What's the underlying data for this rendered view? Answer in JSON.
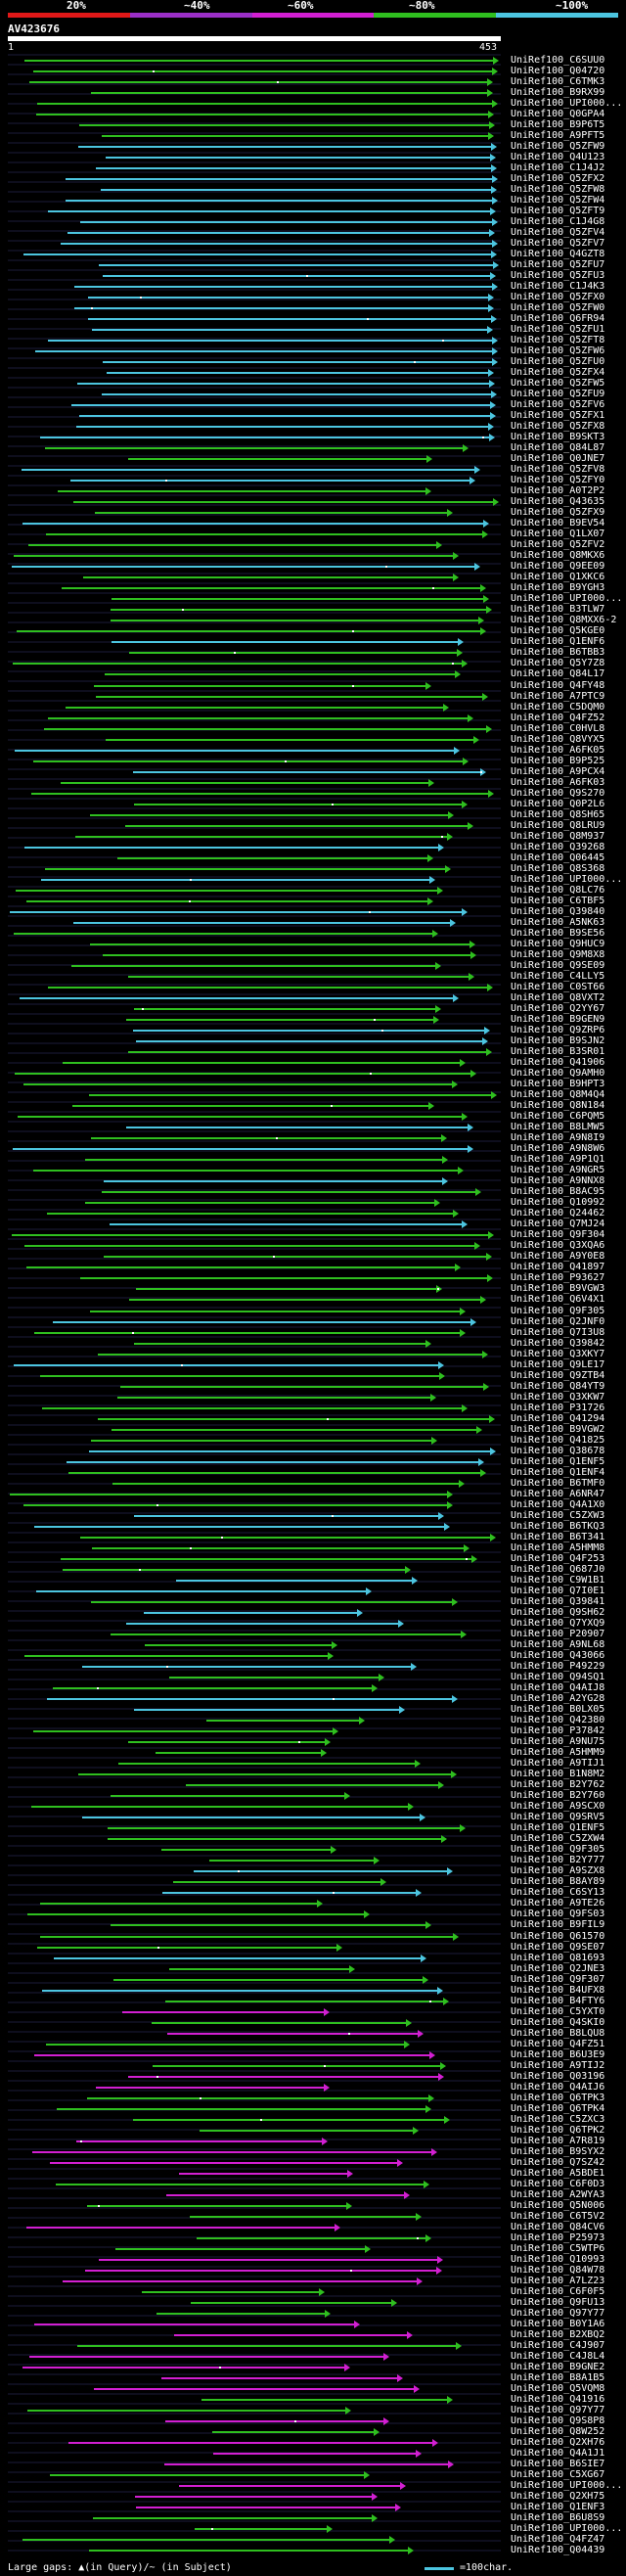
{
  "legend": {
    "labels": [
      "20%",
      "~40%",
      "~60%",
      "~80%",
      "~100%"
    ],
    "colors": [
      "#e01818",
      "#9b2fc7",
      "#d21fd2",
      "#2fbf1f",
      "#4cc5e0"
    ]
  },
  "query": {
    "id": "AV423676",
    "start": "1",
    "end": "453"
  },
  "hits": [
    "UniRef100_C6SUU0",
    "UniRef100_Q04720",
    "UniRef100_C6TMK3",
    "UniRef100_B9RX99",
    "UniRef100_UPI000...",
    "UniRef100_Q0GPA4",
    "UniRef100_B9P6T5",
    "UniRef100_A9PFT5",
    "UniRef100_Q5ZFW9",
    "UniRef100_Q4U123",
    "UniRef100_C1J4J2",
    "UniRef100_Q5ZFX2",
    "UniRef100_Q5ZFW8",
    "UniRef100_Q5ZFW4",
    "UniRef100_Q5ZFT9",
    "UniRef100_C1J4G8",
    "UniRef100_Q5ZFV4",
    "UniRef100_Q5ZFV7",
    "UniRef100_Q4GZT8",
    "UniRef100_Q5ZFU7",
    "UniRef100_Q5ZFU3",
    "UniRef100_C1J4K3",
    "UniRef100_Q5ZFX0",
    "UniRef100_Q5ZFW0",
    "UniRef100_Q6FR94",
    "UniRef100_Q5ZFU1",
    "UniRef100_Q5ZFT8",
    "UniRef100_Q5ZFW6",
    "UniRef100_Q5ZFU0",
    "UniRef100_Q5ZFX4",
    "UniRef100_Q5ZFW5",
    "UniRef100_Q5ZFU9",
    "UniRef100_Q5ZFV6",
    "UniRef100_Q5ZFX1",
    "UniRef100_Q5ZFX8",
    "UniRef100_B9SKT3",
    "UniRef100_Q84L87",
    "UniRef100_Q0JNE7",
    "UniRef100_Q5ZFV8",
    "UniRef100_Q5ZFY0",
    "UniRef100_A0T2P2",
    "UniRef100_Q43635",
    "UniRef100_Q5ZFX9",
    "UniRef100_B9EV54",
    "UniRef100_Q1LX07",
    "UniRef100_Q5ZFV2",
    "UniRef100_Q8MKX6",
    "UniRef100_Q9EE09",
    "UniRef100_Q1XKC6",
    "UniRef100_B9YGH3",
    "UniRef100_UPI000...",
    "UniRef100_B3TLW7",
    "UniRef100_Q8MXX6-2",
    "UniRef100_Q5KGE0",
    "UniRef100_Q1ENF6",
    "UniRef100_B6TBB3",
    "UniRef100_Q5Y7Z8",
    "UniRef100_Q84L17",
    "UniRef100_Q4FY48",
    "UniRef100_A7PTC9",
    "UniRef100_C5DQM0",
    "UniRef100_Q4FZ52",
    "UniRef100_C0HVL8",
    "UniRef100_Q8VYX5",
    "UniRef100_A6FK05",
    "UniRef100_B9P525",
    "UniRef100_A9PCX4",
    "UniRef100_A6FK03",
    "UniRef100_Q9S270",
    "UniRef100_Q0P2L6",
    "UniRef100_Q8SH65",
    "UniRef100_Q8LRU9",
    "UniRef100_Q8M937",
    "UniRef100_Q39268",
    "UniRef100_Q06445",
    "UniRef100_Q8S368",
    "UniRef100_UPI000...",
    "UniRef100_Q8LC76",
    "UniRef100_C6TBF5",
    "UniRef100_Q39840",
    "UniRef100_A5NK63",
    "UniRef100_B9SE56",
    "UniRef100_Q9HUC9",
    "UniRef100_Q9M8X8",
    "UniRef100_Q9SE09",
    "UniRef100_C4LLY5",
    "UniRef100_C0ST66",
    "UniRef100_Q8VXT2",
    "UniRef100_Q2YY67",
    "UniRef100_B9GEN9",
    "UniRef100_Q9ZRP6",
    "UniRef100_B9SJN2",
    "UniRef100_B3SR01",
    "UniRef100_Q41906",
    "UniRef100_Q9AMH0",
    "UniRef100_B9HPT3",
    "UniRef100_Q8M4Q4",
    "UniRef100_Q8N184",
    "UniRef100_C6PQM5",
    "UniRef100_B8LMW5",
    "UniRef100_A9N8I9",
    "UniRef100_A9N8W6",
    "UniRef100_A9P1Q1",
    "UniRef100_A9NGR5",
    "UniRef100_A9NNX8",
    "UniRef100_B8AC95",
    "UniRef100_Q10992",
    "UniRef100_Q24462",
    "UniRef100_Q7MJ24",
    "UniRef100_Q9F304",
    "UniRef100_Q3XQA6",
    "UniRef100_A9Y0E8",
    "UniRef100_Q41897",
    "UniRef100_P93627",
    "UniRef100_B9VGW3",
    "UniRef100_Q6V4X1",
    "UniRef100_Q9F305",
    "UniRef100_Q2JNF0",
    "UniRef100_Q7I3U8",
    "UniRef100_Q39842",
    "UniRef100_Q3XKY7",
    "UniRef100_Q9LE17",
    "UniRef100_Q9ZTB4",
    "UniRef100_Q84YT9",
    "UniRef100_Q3XKW7",
    "UniRef100_P31726",
    "UniRef100_Q41294",
    "UniRef100_B9VGW2",
    "UniRef100_Q41825",
    "UniRef100_Q38678",
    "UniRef100_Q1ENF5",
    "UniRef100_Q1ENF4",
    "UniRef100_B6TMF0",
    "UniRef100_A6NR47",
    "UniRef100_Q4A1X0",
    "UniRef100_C5ZXW3",
    "UniRef100_B6TKQ3",
    "UniRef100_B6T341",
    "UniRef100_A5HMM8",
    "UniRef100_Q4F253",
    "UniRef100_Q687J0",
    "UniRef100_C9W1B1",
    "UniRef100_Q7I0E1",
    "UniRef100_Q39841",
    "UniRef100_Q9SH62",
    "UniRef100_Q7YXQ9",
    "UniRef100_P20907",
    "UniRef100_A9NL68",
    "UniRef100_Q43066",
    "UniRef100_P49229",
    "UniRef100_Q94SQ1",
    "UniRef100_Q4AIJ8",
    "UniRef100_A2YG28",
    "UniRef100_B0LX05",
    "UniRef100_Q42380",
    "UniRef100_P37842",
    "UniRef100_A9NU75",
    "UniRef100_A5HMM9",
    "UniRef100_A9TIJ1",
    "UniRef100_B1N8M2",
    "UniRef100_B2Y762",
    "UniRef100_B2Y760",
    "UniRef100_A9SCX0",
    "UniRef100_Q9SRV5",
    "UniRef100_Q1ENF5",
    "UniRef100_C5ZXW4",
    "UniRef100_Q9F305",
    "UniRef100_B2Y777",
    "UniRef100_A9SZX8",
    "UniRef100_B8AY89",
    "UniRef100_C6SY13",
    "UniRef100_A9TE26",
    "UniRef100_Q9FS03",
    "UniRef100_B9FIL9",
    "UniRef100_Q61570",
    "UniRef100_Q9SE07",
    "UniRef100_Q81693",
    "UniRef100_Q2JNE3",
    "UniRef100_Q9F307",
    "UniRef100_B4UFX8",
    "UniRef100_B4FTY6",
    "UniRef100_C5YXT0",
    "UniRef100_Q4SKI0",
    "UniRef100_B8LQU8",
    "UniRef100_Q4FZ51",
    "UniRef100_B6U3E9",
    "UniRef100_A9TIJ2",
    "UniRef100_Q03196",
    "UniRef100_Q4AIJ6",
    "UniRef100_Q6TPK3",
    "UniRef100_Q6TPK4",
    "UniRef100_C5ZXC3",
    "UniRef100_Q6TPK2",
    "UniRef100_A7R819",
    "UniRef100_B9SYX2",
    "UniRef100_Q7SZ42",
    "UniRef100_A5BDE1",
    "UniRef100_C6F0D3",
    "UniRef100_A2WYA3",
    "UniRef100_Q5N006",
    "UniRef100_C6T5V2",
    "UniRef100_Q84CV6",
    "UniRef100_P25973",
    "UniRef100_C5WTP6",
    "UniRef100_Q10993",
    "UniRef100_Q84W78",
    "UniRef100_A7LZ23",
    "UniRef100_C6F0F5",
    "UniRef100_Q9FU13",
    "UniRef100_Q97Y77",
    "UniRef100_B0Y1A6",
    "UniRef100_B2XBQ2",
    "UniRef100_C4J907",
    "UniRef100_C4J8L4",
    "UniRef100_B9GNE2",
    "UniRef100_B8A1B5",
    "UniRef100_Q5VQM8",
    "UniRef100_Q41916",
    "UniRef100_Q97Y77",
    "UniRef100_Q9S8P8",
    "UniRef100_Q8W252",
    "UniRef100_Q2XH76",
    "UniRef100_Q4A1J1",
    "UniRef100_B6SIE7",
    "UniRef100_C5XG67",
    "UniRef100_UPI000...",
    "UniRef100_Q2XH75",
    "UniRef100_Q1ENF3",
    "UniRef100_B6U8S9",
    "UniRef100_UPI000...",
    "UniRef100_Q4FZ47",
    "UniRef100_Q04439"
  ],
  "footer": {
    "gaps_label": "Large gaps: ▲(in Query)/~ (in Subject)",
    "scale_label": "=100char."
  }
}
